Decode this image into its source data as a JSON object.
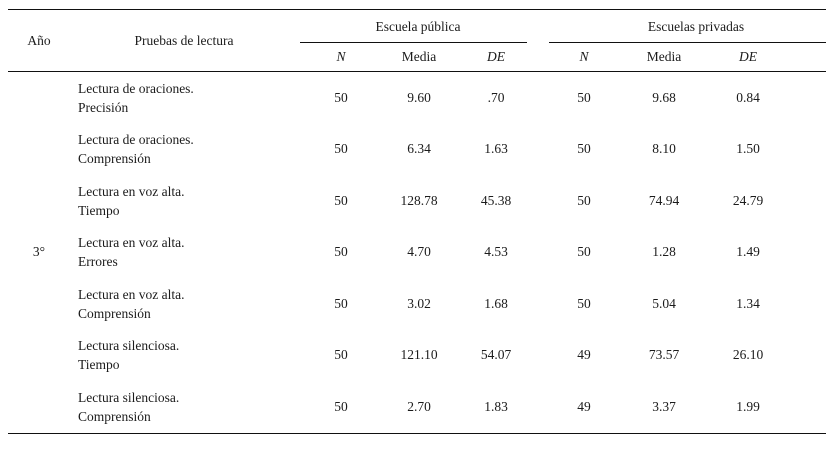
{
  "table": {
    "headers": {
      "ano": "Año",
      "pruebas": "Pruebas de lectura",
      "group_public": "Escuela pública",
      "group_private": "Escuelas privadas",
      "n": "N",
      "media": "Media",
      "de": "DE"
    },
    "year_label": "3°",
    "rows": [
      {
        "test_line1": "Lectura de oraciones.",
        "test_line2": "Precisión",
        "pub_n": "50",
        "pub_media": "9.60",
        "pub_de": ".70",
        "priv_n": "50",
        "priv_media": "9.68",
        "priv_de": "0.84"
      },
      {
        "test_line1": "Lectura de oraciones.",
        "test_line2": "Comprensión",
        "pub_n": "50",
        "pub_media": "6.34",
        "pub_de": "1.63",
        "priv_n": "50",
        "priv_media": "8.10",
        "priv_de": "1.50"
      },
      {
        "test_line1": "Lectura en voz alta.",
        "test_line2": "Tiempo",
        "pub_n": "50",
        "pub_media": "128.78",
        "pub_de": "45.38",
        "priv_n": "50",
        "priv_media": "74.94",
        "priv_de": "24.79"
      },
      {
        "test_line1": "Lectura en voz alta.",
        "test_line2": "Errores",
        "pub_n": "50",
        "pub_media": "4.70",
        "pub_de": "4.53",
        "priv_n": "50",
        "priv_media": "1.28",
        "priv_de": "1.49"
      },
      {
        "test_line1": "Lectura en voz alta.",
        "test_line2": "Comprensión",
        "pub_n": "50",
        "pub_media": "3.02",
        "pub_de": "1.68",
        "priv_n": "50",
        "priv_media": "5.04",
        "priv_de": "1.34"
      },
      {
        "test_line1": "Lectura silenciosa.",
        "test_line2": "Tiempo",
        "pub_n": "50",
        "pub_media": "121.10",
        "pub_de": "54.07",
        "priv_n": "49",
        "priv_media": "73.57",
        "priv_de": "26.10"
      },
      {
        "test_line1": "Lectura silenciosa.",
        "test_line2": "Comprensión",
        "pub_n": "50",
        "pub_media": "2.70",
        "pub_de": "1.83",
        "priv_n": "49",
        "priv_media": "3.37",
        "priv_de": "1.99"
      }
    ]
  }
}
